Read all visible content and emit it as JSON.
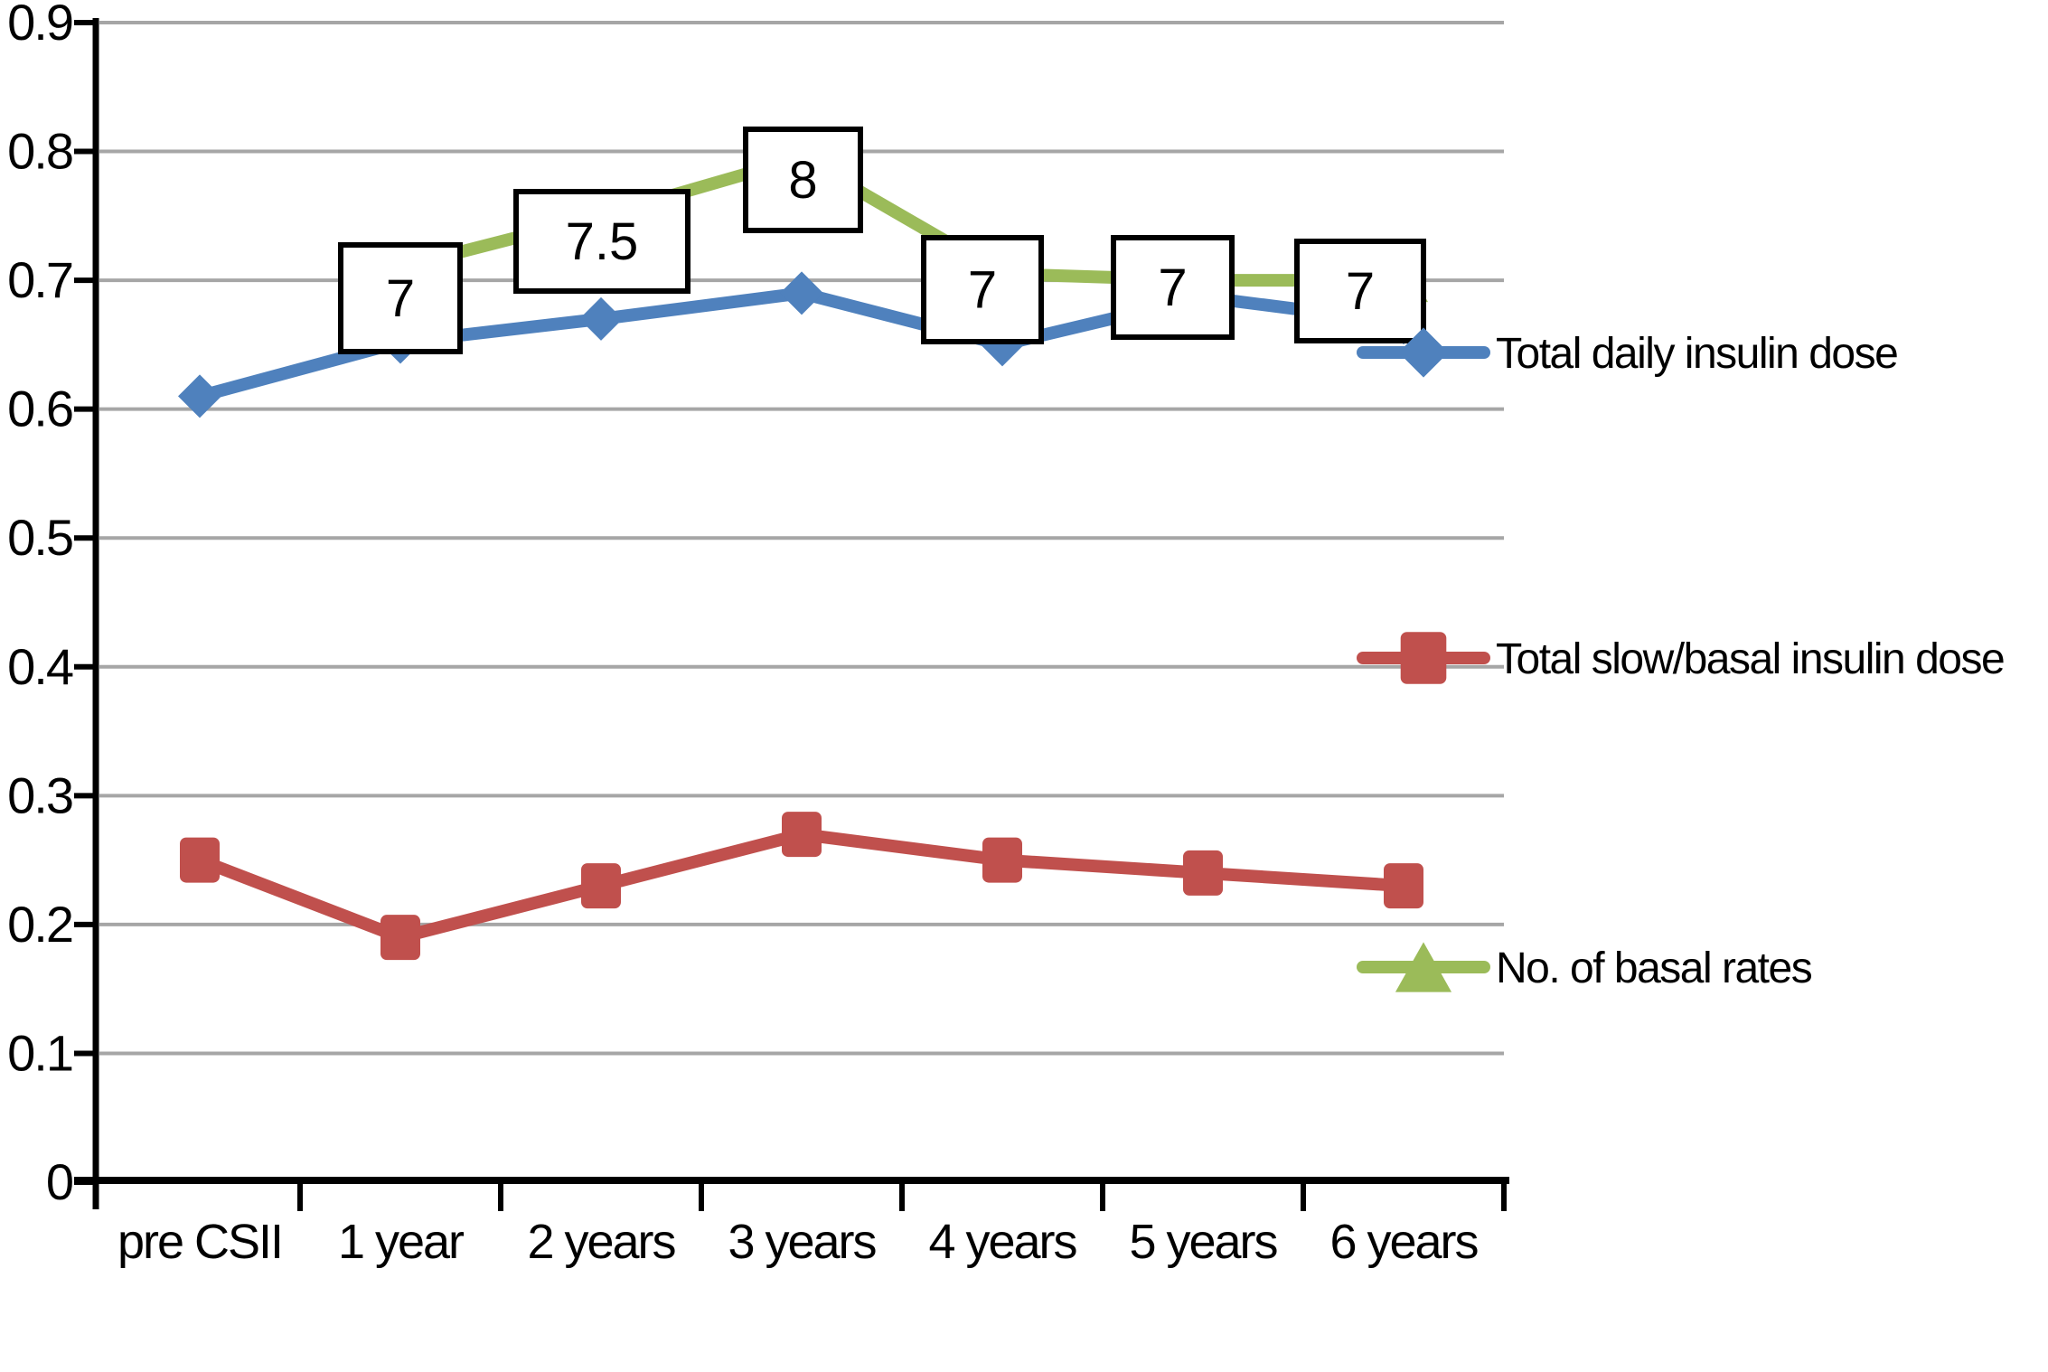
{
  "chart_data": {
    "type": "line",
    "title": "",
    "categories": [
      "pre CSII",
      "1 year",
      "2 years",
      "3 years",
      "4 years",
      "5 years",
      "6 years"
    ],
    "y_axis": {
      "min": 0,
      "max": 0.9,
      "step": 0.1,
      "tick_labels": [
        "0",
        "0.1",
        "0.2",
        "0.3",
        "0.4",
        "0.5",
        "0.6",
        "0.7",
        "0.8",
        "0.9"
      ]
    },
    "grid": true,
    "legend_position": "right",
    "series": [
      {
        "name": "Total daily insulin dose",
        "color": "#4F81BD",
        "marker": "diamond",
        "values": [
          0.61,
          0.652,
          0.67,
          0.69,
          0.65,
          0.687,
          0.667
        ]
      },
      {
        "name": "Total slow/basal insulin dose",
        "color": "#C0504D",
        "marker": "square",
        "values": [
          0.25,
          0.19,
          0.23,
          0.27,
          0.25,
          0.24,
          0.23
        ]
      },
      {
        "name": "No. of basal rates",
        "color": "#9BBB59",
        "marker": "triangle",
        "values": [
          null,
          0.71,
          0.75,
          0.795,
          0.705,
          0.7,
          0.7
        ],
        "data_labels": [
          null,
          "7",
          "7.5",
          "8",
          "7",
          "7",
          "7"
        ]
      }
    ],
    "colors": {
      "gridline": "#A6A6A6",
      "axis": "#000000",
      "label_box_fill": "#FFFFFF",
      "label_box_border": "#000000"
    }
  }
}
